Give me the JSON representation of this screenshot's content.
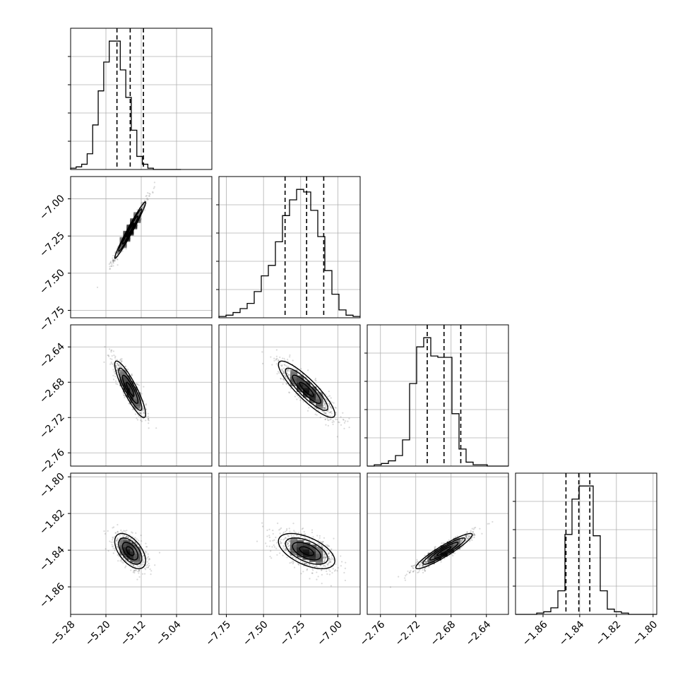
{
  "chart_data": {
    "type": "corner",
    "grid": true,
    "parameters": [
      {
        "range": [
          -5.28,
          -4.96
        ],
        "ticks": [
          -5.28,
          -5.2,
          -5.12,
          -5.04
        ],
        "tick_labels": [
          "−5.28",
          "−5.20",
          "−5.12",
          "−5.04"
        ],
        "quantiles": [
          -5.175,
          -5.145,
          -5.115
        ],
        "hist": {
          "edges_start": -5.28,
          "bin_width": 0.0125,
          "counts": [
            1,
            2,
            4,
            12,
            34,
            60,
            82,
            98,
            98,
            76,
            55,
            30,
            10,
            4,
            1,
            0,
            0,
            0,
            0,
            0
          ]
        }
      },
      {
        "range": [
          -7.8,
          -6.85
        ],
        "ticks": [
          -7.75,
          -7.5,
          -7.25,
          -7.0
        ],
        "tick_labels": [
          "−7.75",
          "−7.50",
          "−7.25",
          "−7.00"
        ],
        "quantiles": [
          -7.355,
          -7.21,
          -7.095
        ],
        "hist": {
          "edges_start": -7.8,
          "bin_width": 0.0475,
          "counts": [
            1,
            2,
            4,
            7,
            11,
            20,
            32,
            40,
            58,
            78,
            90,
            98,
            96,
            82,
            62,
            36,
            18,
            6,
            2,
            1
          ]
        }
      },
      {
        "range": [
          -2.775,
          -2.615
        ],
        "ticks": [
          -2.76,
          -2.72,
          -2.68,
          -2.64
        ],
        "tick_labels": [
          "−2.76",
          "−2.72",
          "−2.68",
          "−2.64"
        ],
        "quantiles": [
          -2.707,
          -2.688,
          -2.669
        ],
        "hist": {
          "edges_start": -2.775,
          "bin_width": 0.008,
          "counts": [
            0,
            1,
            2,
            4,
            8,
            20,
            63,
            91,
            98,
            84,
            83,
            83,
            40,
            13,
            3,
            1,
            1,
            0,
            0,
            0
          ]
        }
      },
      {
        "range": [
          -1.875,
          -1.798
        ],
        "ticks": [
          -1.86,
          -1.84,
          -1.82,
          -1.8
        ],
        "tick_labels": [
          "−1.86",
          "−1.84",
          "−1.82",
          "−1.80"
        ],
        "quantiles": [
          -1.8475,
          -1.8405,
          -1.8345
        ],
        "hist": {
          "edges_start": -1.875,
          "bin_width": 0.00385,
          "counts": [
            0,
            0,
            0,
            1,
            2,
            5,
            18,
            61,
            88,
            98,
            98,
            60,
            18,
            4,
            2,
            1,
            0,
            0,
            0,
            0
          ]
        }
      }
    ],
    "pairs": [
      {
        "row": 1,
        "col": 0,
        "mean": [
          -5.145,
          -7.21
        ],
        "std": [
          0.0175,
          0.095
        ],
        "corr": 0.98
      },
      {
        "row": 2,
        "col": 0,
        "mean": [
          -5.145,
          -2.688
        ],
        "std": [
          0.0175,
          0.016
        ],
        "corr": -0.88
      },
      {
        "row": 2,
        "col": 1,
        "mean": [
          -7.21,
          -2.688
        ],
        "std": [
          0.095,
          0.016
        ],
        "corr": -0.88
      },
      {
        "row": 3,
        "col": 0,
        "mean": [
          -5.145,
          -1.8405
        ],
        "std": [
          0.0175,
          0.0048
        ],
        "corr": -0.55
      },
      {
        "row": 3,
        "col": 1,
        "mean": [
          -7.21,
          -1.8405
        ],
        "std": [
          0.095,
          0.0048
        ],
        "corr": -0.55
      },
      {
        "row": 3,
        "col": 2,
        "mean": [
          -2.688,
          -1.8405
        ],
        "std": [
          0.016,
          0.0048
        ],
        "corr": 0.93
      }
    ],
    "contour_levels_sigma": [
      0.5,
      1.0,
      1.5,
      2.0
    ]
  }
}
